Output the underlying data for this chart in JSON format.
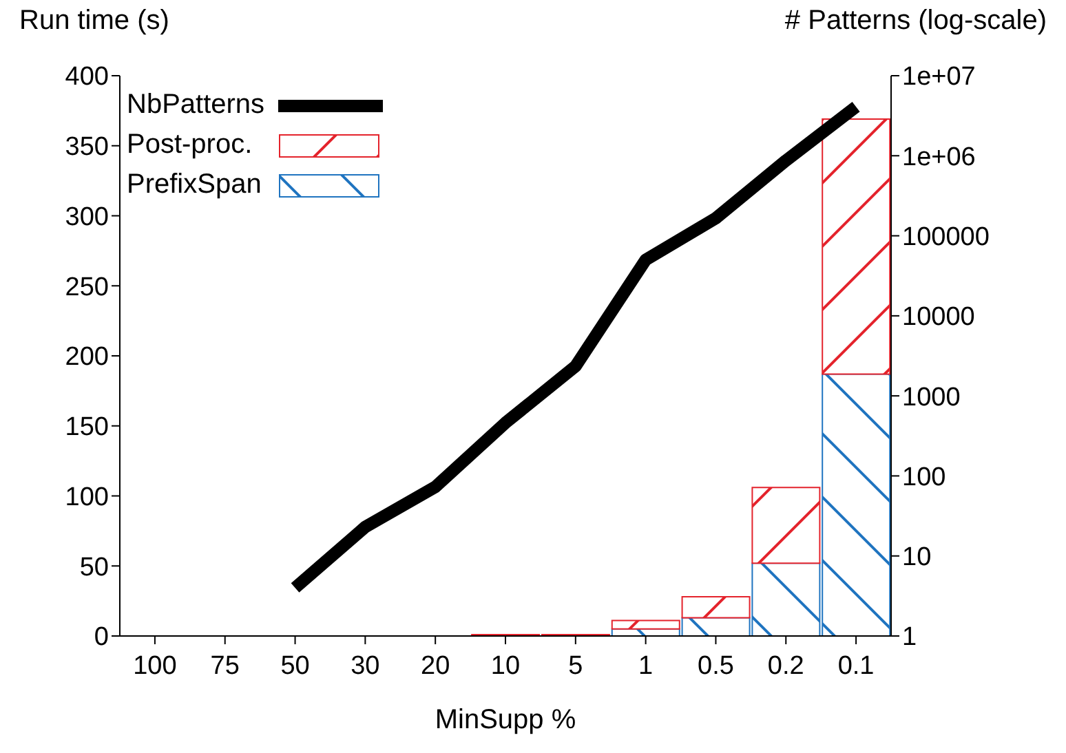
{
  "chart_data": {
    "type": "bar",
    "stacked": true,
    "ylabel": "Run time (s)",
    "y2label": "# Patterns (log-scale)",
    "xlabel": "MinSupp %",
    "categories": [
      "100",
      "75",
      "50",
      "30",
      "20",
      "10",
      "5",
      "1",
      "0.5",
      "0.2",
      "0.1"
    ],
    "series": [
      {
        "name": "PrefixSpan",
        "color": "#1f74c0",
        "values": [
          0,
          0,
          0,
          0,
          0,
          0,
          0,
          5,
          13,
          52,
          187
        ]
      },
      {
        "name": "Post-proc.",
        "color": "#e4232c",
        "values": [
          0,
          0,
          0,
          0,
          0,
          1,
          1,
          6,
          15,
          54,
          182
        ]
      },
      {
        "name": "NbPatterns",
        "type": "line",
        "axis": "y2",
        "color": "#000000",
        "values": [
          null,
          null,
          4,
          23,
          73,
          460,
          2350,
          50000,
          166000,
          870000,
          4100000
        ]
      }
    ],
    "ylim": [
      0,
      400
    ],
    "yticks": [
      0,
      50,
      100,
      150,
      200,
      250,
      300,
      350,
      400
    ],
    "y2lim": [
      1,
      10000000
    ],
    "y2ticks": [
      1,
      10,
      100,
      1000,
      10000,
      100000,
      {
        "value": 1000000,
        "label": "1e+06"
      },
      {
        "value": 10000000,
        "label": "1e+07"
      }
    ],
    "log": "y2",
    "grid": false,
    "legend": "top left",
    "marker": "none",
    "line_style": "solid"
  }
}
